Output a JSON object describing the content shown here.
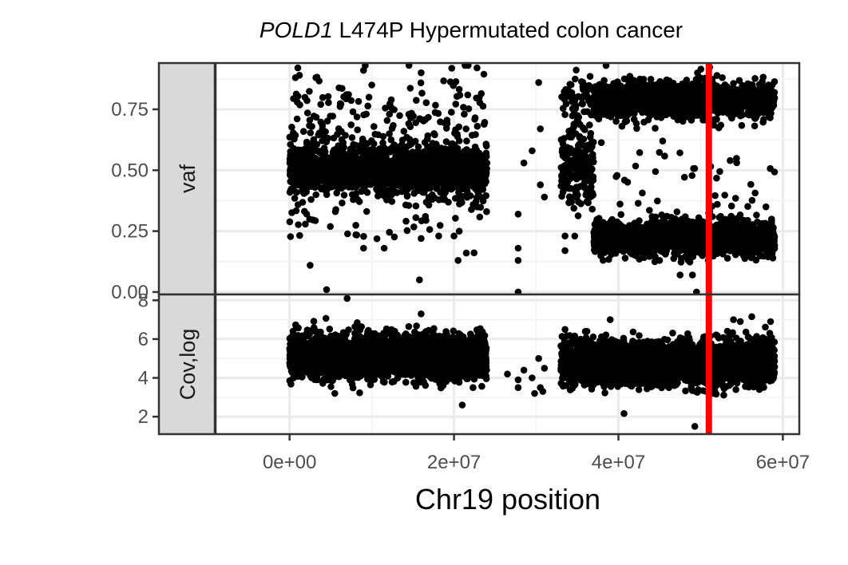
{
  "chart_data": {
    "type": "scatter",
    "title_gene": "POLD1",
    "title_rest": " L474P Hypermutated colon cancer",
    "xlabel": "Chr19 position",
    "xlim": [
      -9000000,
      62000000
    ],
    "x_ticks": [
      0,
      20000000,
      40000000,
      60000000
    ],
    "x_tick_labels": [
      "0e+00",
      "2e+07",
      "4e+07",
      "6e+07"
    ],
    "grid": true,
    "point_color": "#000000",
    "marker": {
      "x": 51000000,
      "color": "#ff0000"
    },
    "panels": [
      {
        "strip_label": "vaf",
        "ylim": [
          -0.01,
          0.94
        ],
        "y_ticks": [
          0,
          0.25,
          0.5,
          0.75
        ],
        "y_tick_labels": [
          "0.00",
          "0.25",
          "0.50",
          "0.75"
        ],
        "segments": [
          {
            "x_range": [
              0,
              24000000
            ],
            "y_center": 0.5,
            "y_spread": 0.05,
            "count": 1600
          },
          {
            "x_range": [
              0,
              24000000
            ],
            "y_center": 0.7,
            "y_spread": 0.1,
            "count": 180
          },
          {
            "x_range": [
              0,
              24000000
            ],
            "y_center": 0.3,
            "y_spread": 0.06,
            "count": 50
          },
          {
            "x_range": [
              33000000,
              37000000
            ],
            "y_center": 0.5,
            "y_spread": 0.09,
            "count": 200
          },
          {
            "x_range": [
              33000000,
              37000000
            ],
            "y_center": 0.78,
            "y_spread": 0.05,
            "count": 60
          },
          {
            "x_range": [
              37000000,
              59000000
            ],
            "y_center": 0.79,
            "y_spread": 0.035,
            "count": 1500
          },
          {
            "x_range": [
              37000000,
              59000000
            ],
            "y_center": 0.22,
            "y_spread": 0.035,
            "count": 1500
          },
          {
            "x_range": [
              37000000,
              59000000
            ],
            "y_center": 0.5,
            "y_spread": 0.15,
            "count": 60
          }
        ],
        "points": [
          [
            4500000,
            0.01
          ],
          [
            2500000,
            0.11
          ],
          [
            9000000,
            0.18
          ],
          [
            11500000,
            0.18
          ],
          [
            15800000,
            0.05
          ],
          [
            16000000,
            0.22
          ],
          [
            20000000,
            0.23
          ],
          [
            20500000,
            0.13
          ],
          [
            21500000,
            0.16
          ],
          [
            27800000,
            0.0
          ],
          [
            27800000,
            0.32
          ],
          [
            27800000,
            0.18
          ],
          [
            27800000,
            0.13
          ],
          [
            28500000,
            0.53
          ],
          [
            29500000,
            0.58
          ],
          [
            30500000,
            0.44
          ],
          [
            30500000,
            0.67
          ],
          [
            31000000,
            0.39
          ],
          [
            30300000,
            0.86
          ],
          [
            33500000,
            0.17
          ],
          [
            33500000,
            0.23
          ],
          [
            49000000,
            0.07
          ],
          [
            49500000,
            0.0
          ],
          [
            45000000,
            0.13
          ],
          [
            47500000,
            0.07
          ],
          [
            9200000,
            0.93
          ],
          [
            9000000,
            0.91
          ],
          [
            1000000,
            0.92
          ],
          [
            1200000,
            0.89
          ],
          [
            3200000,
            0.88
          ],
          [
            16000000,
            0.9
          ],
          [
            22800000,
            0.92
          ],
          [
            10000000,
            0.85
          ],
          [
            38500000,
            0.93
          ],
          [
            24000000,
            0.53
          ]
        ]
      },
      {
        "strip_label": "Cov,log",
        "ylim": [
          1.1,
          8.3
        ],
        "y_ticks": [
          2,
          4,
          6,
          8
        ],
        "y_tick_labels": [
          "2",
          "4",
          "6",
          "8"
        ],
        "segments": [
          {
            "x_range": [
              0,
              24000000
            ],
            "y_center": 5.1,
            "y_spread": 0.55,
            "count": 2600
          },
          {
            "x_range": [
              33000000,
              59000000
            ],
            "y_center": 4.8,
            "y_spread": 0.55,
            "count": 3000
          }
        ],
        "points": [
          [
            7000000,
            8.1
          ],
          [
            27800000,
            3.5
          ],
          [
            27800000,
            3.9
          ],
          [
            28500000,
            4.4
          ],
          [
            29500000,
            4.0
          ],
          [
            30500000,
            3.5
          ],
          [
            30300000,
            5.0
          ],
          [
            31000000,
            4.5
          ],
          [
            30800000,
            3.3
          ],
          [
            29800000,
            3.2
          ],
          [
            49300000,
            1.5
          ],
          [
            26500000,
            4.2
          ],
          [
            21000000,
            2.6
          ],
          [
            33500000,
            6.5
          ],
          [
            39000000,
            7.0
          ],
          [
            54000000,
            7.0
          ],
          [
            58500000,
            6.9
          ],
          [
            16000000,
            7.3
          ],
          [
            5500000,
            3.2
          ]
        ]
      }
    ]
  }
}
